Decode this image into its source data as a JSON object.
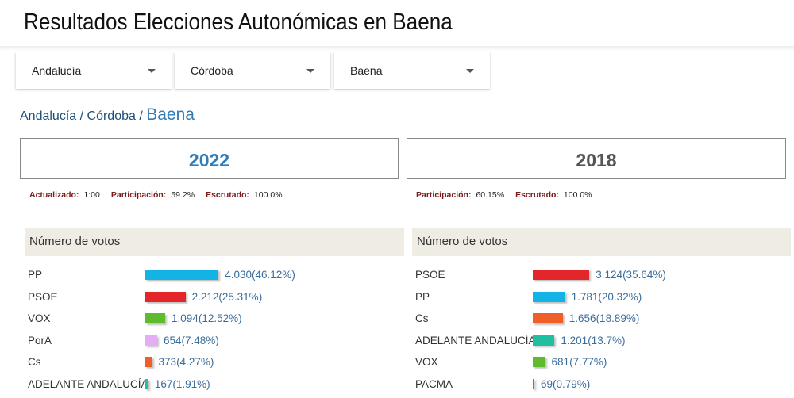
{
  "title": "Resultados Elecciones Autonómicas en Baena",
  "selects": [
    {
      "value": "Andalucía"
    },
    {
      "value": "Córdoba"
    },
    {
      "value": "Baena"
    }
  ],
  "breadcrumb": {
    "region": "Andalucía",
    "sep": " / ",
    "province": "Córdoba",
    "current": "Baena"
  },
  "elections": [
    {
      "year": "2022",
      "year_color": "#2f7cb8",
      "meta": [
        {
          "label": "Actualizado:",
          "value": "1:00"
        },
        {
          "label": "Participación:",
          "value": "59.2%"
        },
        {
          "label": "Escrutado:",
          "value": "100.0%"
        }
      ],
      "header": "Número de votos",
      "parties": [
        {
          "name": "PP",
          "votes": "4.030",
          "pct": 46.12,
          "pct_label": "(46.12%)",
          "color": "#14b3e6"
        },
        {
          "name": "PSOE",
          "votes": "2.212",
          "pct": 25.31,
          "pct_label": "(25.31%)",
          "color": "#e4252a"
        },
        {
          "name": "VOX",
          "votes": "1.094",
          "pct": 12.52,
          "pct_label": "(12.52%)",
          "color": "#5fbb2e"
        },
        {
          "name": "PorA",
          "votes": "654",
          "pct": 7.48,
          "pct_label": "(7.48%)",
          "color": "#e3aef3"
        },
        {
          "name": "Cs",
          "votes": "373",
          "pct": 4.27,
          "pct_label": "(4.27%)",
          "color": "#ee6028"
        },
        {
          "name": "ADELANTE ANDALUCÍA",
          "votes": "167",
          "pct": 1.91,
          "pct_label": "(1.91%)",
          "color": "#1fbfa0"
        }
      ]
    },
    {
      "year": "2018",
      "year_color": "#555555",
      "meta": [
        {
          "label": "Participación:",
          "value": "60.15%"
        },
        {
          "label": "Escrutado:",
          "value": "100.0%"
        }
      ],
      "header": "Número de votos",
      "parties": [
        {
          "name": "PSOE",
          "votes": "3.124",
          "pct": 35.64,
          "pct_label": "(35.64%)",
          "color": "#e4252a"
        },
        {
          "name": "PP",
          "votes": "1.781",
          "pct": 20.32,
          "pct_label": "(20.32%)",
          "color": "#14b3e6"
        },
        {
          "name": "Cs",
          "votes": "1.656",
          "pct": 18.89,
          "pct_label": "(18.89%)",
          "color": "#ee6028"
        },
        {
          "name": "ADELANTE ANDALUCÍA",
          "votes": "1.201",
          "pct": 13.7,
          "pct_label": "(13.7%)",
          "color": "#1fbfa0"
        },
        {
          "name": "VOX",
          "votes": "681",
          "pct": 7.77,
          "pct_label": "(7.77%)",
          "color": "#5fbb2e"
        },
        {
          "name": "PACMA",
          "votes": "69",
          "pct": 0.79,
          "pct_label": "(0.79%)",
          "color": "#6a8a2a"
        }
      ]
    }
  ]
}
